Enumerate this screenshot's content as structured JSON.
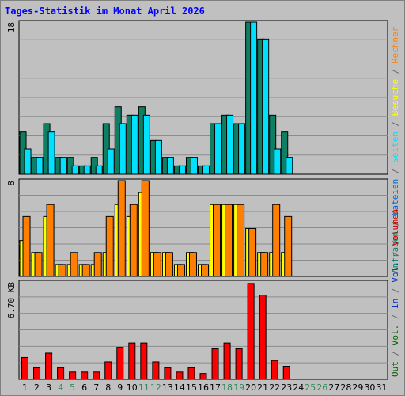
{
  "chart_data": {
    "type": "bar",
    "title": "Tages-Statistik im Monat April 2026",
    "categories": [
      "1",
      "2",
      "3",
      "4",
      "5",
      "6",
      "7",
      "8",
      "9",
      "10",
      "11",
      "12",
      "13",
      "14",
      "15",
      "16",
      "17",
      "18",
      "19",
      "20",
      "21",
      "22",
      "23",
      "24",
      "25",
      "26",
      "27",
      "28",
      "29",
      "30",
      "31"
    ],
    "weekend_days": [
      "4",
      "5",
      "11",
      "12",
      "18",
      "19",
      "25",
      "26"
    ],
    "panels": [
      {
        "name": "top",
        "ymax_label": "18",
        "ymax": 18,
        "series": [
          {
            "name": "Anfragen",
            "color": "#0f7f64",
            "values": [
              5,
              2,
              6,
              2,
              2,
              1,
              2,
              6,
              8,
              7,
              8,
              4,
              2,
              1,
              2,
              1,
              6,
              7,
              6,
              18,
              16,
              7,
              5,
              null,
              null,
              null,
              null,
              null,
              null,
              null,
              null
            ]
          },
          {
            "name": "Dateien",
            "color": "#0066cc",
            "values": [
              3,
              2,
              5,
              2,
              1,
              1,
              1,
              3,
              6,
              7,
              7,
              4,
              2,
              1,
              2,
              1,
              6,
              7,
              6,
              18,
              16,
              3,
              2,
              null,
              null,
              null,
              null,
              null,
              null,
              null,
              null
            ]
          },
          {
            "name": "Seiten",
            "color": "#00e0ff",
            "values": [
              3,
              2,
              5,
              2,
              1,
              1,
              1,
              3,
              6,
              7,
              7,
              4,
              2,
              1,
              2,
              1,
              6,
              7,
              6,
              18,
              16,
              3,
              2,
              null,
              null,
              null,
              null,
              null,
              null,
              null,
              null
            ]
          }
        ]
      },
      {
        "name": "middle",
        "ymax_label": "8",
        "ymax": 8,
        "series": [
          {
            "name": "Besuche",
            "color": "#ffff00",
            "values": [
              3,
              2,
              5,
              1,
              1,
              1,
              1,
              2,
              6,
              5,
              7,
              2,
              2,
              1,
              2,
              1,
              6,
              6,
              6,
              4,
              2,
              2,
              2,
              null,
              null,
              null,
              null,
              null,
              null,
              null,
              null
            ]
          },
          {
            "name": "Rechner",
            "color": "#ff8000",
            "values": [
              5,
              2,
              6,
              1,
              2,
              1,
              2,
              5,
              8,
              6,
              8,
              2,
              2,
              1,
              2,
              1,
              6,
              6,
              6,
              4,
              2,
              6,
              5,
              null,
              null,
              null,
              null,
              null,
              null,
              null,
              null
            ]
          }
        ]
      },
      {
        "name": "bottom",
        "ymax_label": "6.70 KB",
        "ymax": 6.7,
        "series": [
          {
            "name": "Volumen",
            "color": "#ff0000",
            "values": [
              1.5,
              0.8,
              1.8,
              0.8,
              0.5,
              0.5,
              0.5,
              1.2,
              2.2,
              2.5,
              2.5,
              1.2,
              0.8,
              0.5,
              0.8,
              0.4,
              2.1,
              2.5,
              2.1,
              6.6,
              5.8,
              1.3,
              0.9,
              null,
              null,
              null,
              null,
              null,
              null,
              null,
              null
            ]
          }
        ]
      }
    ],
    "right_legend_1": [
      {
        "text": "Anfragen",
        "color": "#0f7f64"
      },
      {
        "text": "/",
        "color": "#666666"
      },
      {
        "text": "Dateien",
        "color": "#0066cc"
      },
      {
        "text": "/",
        "color": "#666666"
      },
      {
        "text": "Seiten",
        "color": "#00e0ff"
      },
      {
        "text": "/",
        "color": "#666666"
      },
      {
        "text": "Besuche",
        "color": "#ffff00"
      },
      {
        "text": "/",
        "color": "#666666"
      },
      {
        "text": "Rechner",
        "color": "#ff8000"
      }
    ],
    "right_legend_2": [
      {
        "text": "Out",
        "color": "#006600"
      },
      {
        "text": "/",
        "color": "#666666"
      },
      {
        "text": "Vol.",
        "color": "#006600"
      },
      {
        "text": "/",
        "color": "#666666"
      },
      {
        "text": "In",
        "color": "#0033cc"
      },
      {
        "text": "/",
        "color": "#666666"
      },
      {
        "text": "Vol.",
        "color": "#0033cc"
      },
      {
        "text": "/",
        "color": "#666666"
      },
      {
        "text": "Volumen",
        "color": "#cc0000"
      }
    ]
  }
}
